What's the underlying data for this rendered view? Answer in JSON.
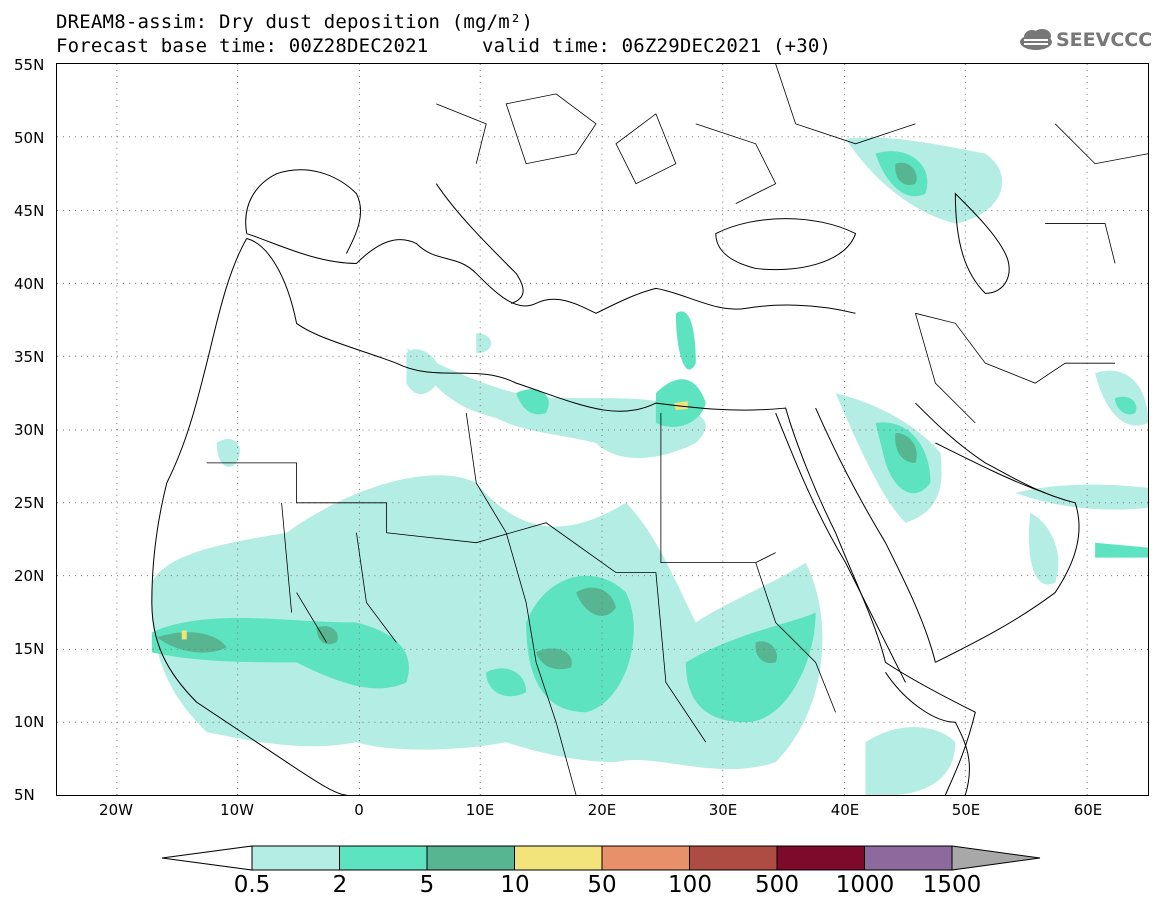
{
  "title": {
    "line1": "DREAM8-assim: Dry dust deposition (mg/m²)",
    "line2_left": "Forecast base time: 00Z28DEC2021",
    "line2_right": "valid time: 06Z29DEC2021 (+30)"
  },
  "logo": {
    "text": "SEEVCCC",
    "icon": "cloud-logo-icon"
  },
  "axes": {
    "lat_labels": [
      "55N",
      "50N",
      "45N",
      "40N",
      "35N",
      "30N",
      "25N",
      "20N",
      "15N",
      "10N",
      "5N"
    ],
    "lon_labels": [
      "20W",
      "10W",
      "0",
      "10E",
      "20E",
      "30E",
      "40E",
      "50E",
      "60E"
    ]
  },
  "colorbar": {
    "labels": [
      "0.5",
      "2",
      "5",
      "10",
      "50",
      "100",
      "500",
      "1000",
      "1500"
    ],
    "colors": [
      "#ffffff",
      "#b3ede4",
      "#5de3c0",
      "#57b592",
      "#f2e47a",
      "#e8906a",
      "#ad4c42",
      "#7e0a2b",
      "#8c6a9e",
      "#a8a8a8"
    ]
  }
}
